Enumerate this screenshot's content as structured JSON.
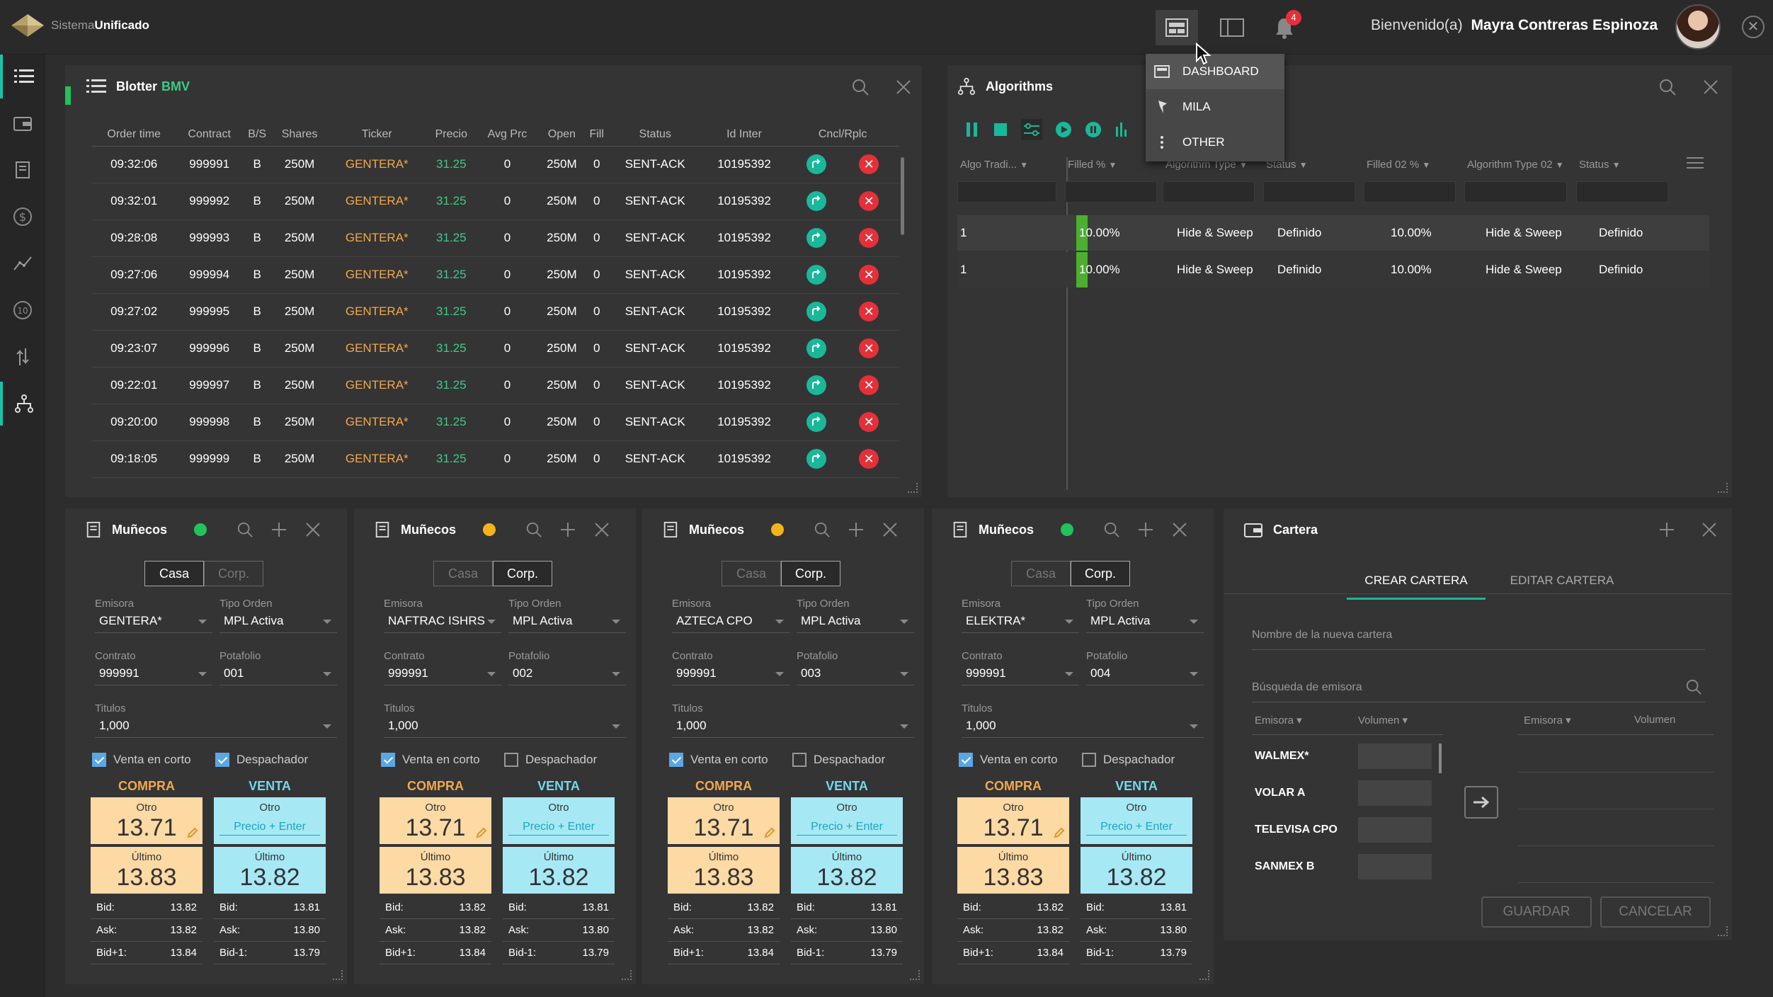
{
  "app": {
    "brand_light": "Sistema",
    "brand_bold": "Unificado",
    "welcome": "Bienvenido(a)",
    "user": "Mayra Contreras Espinoza",
    "notifications": "4"
  },
  "view_menu": {
    "items": [
      "DASHBOARD",
      "MILA",
      "OTHER"
    ]
  },
  "blotter": {
    "title": "Blotter",
    "market": "BMV",
    "columns": [
      "Order time",
      "Contract",
      "B/S",
      "Shares",
      "Ticker",
      "Precio",
      "Avg Prc",
      "Open",
      "Fill",
      "Status",
      "Id Inter",
      "Cncl/Rplc"
    ],
    "rows": [
      [
        "09:32:06",
        "999991",
        "B",
        "250M",
        "GENTERA*",
        "31.25",
        "0",
        "250M",
        "0",
        "SENT-ACK",
        "10195392"
      ],
      [
        "09:32:01",
        "999992",
        "B",
        "250M",
        "GENTERA*",
        "31.25",
        "0",
        "250M",
        "0",
        "SENT-ACK",
        "10195392"
      ],
      [
        "09:28:08",
        "999993",
        "B",
        "250M",
        "GENTERA*",
        "31.25",
        "0",
        "250M",
        "0",
        "SENT-ACK",
        "10195392"
      ],
      [
        "09:27:06",
        "999994",
        "B",
        "250M",
        "GENTERA*",
        "31.25",
        "0",
        "250M",
        "0",
        "SENT-ACK",
        "10195392"
      ],
      [
        "09:27:02",
        "999995",
        "B",
        "250M",
        "GENTERA*",
        "31.25",
        "0",
        "250M",
        "0",
        "SENT-ACK",
        "10195392"
      ],
      [
        "09:23:07",
        "999996",
        "B",
        "250M",
        "GENTERA*",
        "31.25",
        "0",
        "250M",
        "0",
        "SENT-ACK",
        "10195392"
      ],
      [
        "09:22:01",
        "999997",
        "B",
        "250M",
        "GENTERA*",
        "31.25",
        "0",
        "250M",
        "0",
        "SENT-ACK",
        "10195392"
      ],
      [
        "09:20:00",
        "999998",
        "B",
        "250M",
        "GENTERA*",
        "31.25",
        "0",
        "250M",
        "0",
        "SENT-ACK",
        "10195392"
      ],
      [
        "09:18:05",
        "999999",
        "B",
        "250M",
        "GENTERA*",
        "31.25",
        "0",
        "250M",
        "0",
        "SENT-ACK",
        "10195392"
      ]
    ]
  },
  "algorithms": {
    "title": "Algorithms",
    "columns": [
      "Algo Tradi...",
      "Filled %",
      "Algorithm Type",
      "Status",
      "Filled 02 %",
      "Algorithm Type 02",
      "Status"
    ],
    "rows": [
      {
        "algo": "1",
        "filled": "10.00%",
        "filled_frac": 0.1,
        "type": "Hide & Sweep",
        "status": "Definido",
        "filled2": "10.00%",
        "type2": "Hide & Sweep",
        "status2": "Definido"
      },
      {
        "algo": "1",
        "filled": "10.00%",
        "filled_frac": 0.1,
        "type": "Hide & Sweep",
        "status": "Definido",
        "filled2": "10.00%",
        "type2": "Hide & Sweep",
        "status2": "Definido"
      }
    ]
  },
  "munecos_common": {
    "title": "Muñecos",
    "casa": "Casa",
    "corp": "Corp.",
    "lbl_emisora": "Emisora",
    "lbl_tipo": "Tipo Orden",
    "lbl_contrato": "Contrato",
    "lbl_portafolio": "Potafolio",
    "lbl_titulos": "Titulos",
    "lbl_venta_corto": "Venta en corto",
    "lbl_despachador": "Despachador",
    "compra": "COMPRA",
    "venta": "VENTA",
    "otro": "Otro",
    "ultimo": "Último",
    "precio_enter": "Precio + Enter",
    "bid": "Bid:",
    "ask": "Ask:",
    "bid_p1": "Bid+1:",
    "bid_m1": "Bid-1:"
  },
  "munecos": [
    {
      "status_color": "#21c35a",
      "mode": "casa",
      "emisora": "GENTERA*",
      "tipo": "MPL Activa",
      "contrato": "999991",
      "portafolio": "001",
      "titulos": "1,000",
      "venta_corto": true,
      "despachador": true,
      "otro": "13.71",
      "ultimo_c": "13.83",
      "ultimo_v": "13.82",
      "bid_c": "13.82",
      "ask_c": "13.82",
      "bidp1": "13.84",
      "bid_v": "13.81",
      "ask_v": "13.80",
      "bidm1": "13.79"
    },
    {
      "status_color": "#f5b21c",
      "mode": "corp",
      "emisora": "NAFTRAC ISHRS",
      "tipo": "MPL Activa",
      "contrato": "999991",
      "portafolio": "002",
      "titulos": "1,000",
      "venta_corto": true,
      "despachador": false,
      "otro": "13.71",
      "ultimo_c": "13.83",
      "ultimo_v": "13.82",
      "bid_c": "13.82",
      "ask_c": "13.82",
      "bidp1": "13.84",
      "bid_v": "13.81",
      "ask_v": "13.80",
      "bidm1": "13.79"
    },
    {
      "status_color": "#f5b21c",
      "mode": "corp",
      "emisora": "AZTECA CPO",
      "tipo": "MPL Activa",
      "contrato": "999991",
      "portafolio": "003",
      "titulos": "1,000",
      "venta_corto": true,
      "despachador": false,
      "otro": "13.71",
      "ultimo_c": "13.83",
      "ultimo_v": "13.82",
      "bid_c": "13.82",
      "ask_c": "13.82",
      "bidp1": "13.84",
      "bid_v": "13.81",
      "ask_v": "13.80",
      "bidm1": "13.79"
    },
    {
      "status_color": "#21c35a",
      "mode": "corp",
      "emisora": "ELEKTRA*",
      "tipo": "MPL Activa",
      "contrato": "999991",
      "portafolio": "004",
      "titulos": "1,000",
      "venta_corto": true,
      "despachador": false,
      "otro": "13.71",
      "ultimo_c": "13.83",
      "ultimo_v": "13.82",
      "bid_c": "13.82",
      "ask_c": "13.82",
      "bidp1": "13.84",
      "bid_v": "13.81",
      "ask_v": "13.80",
      "bidm1": "13.79"
    }
  ],
  "cartera": {
    "title": "Cartera",
    "tab_crear": "CREAR CARTERA",
    "tab_editar": "EDITAR CARTERA",
    "nombre_placeholder": "Nombre de la nueva cartera",
    "busqueda_placeholder": "Búsqueda de emisora",
    "col_emisora": "Emisora",
    "col_volumen": "Volumen",
    "emisoras": [
      "WALMEX*",
      "VOLAR A",
      "TELEVISA CPO",
      "SANMEX B"
    ],
    "guardar": "GUARDAR",
    "cancelar": "CANCELAR"
  }
}
